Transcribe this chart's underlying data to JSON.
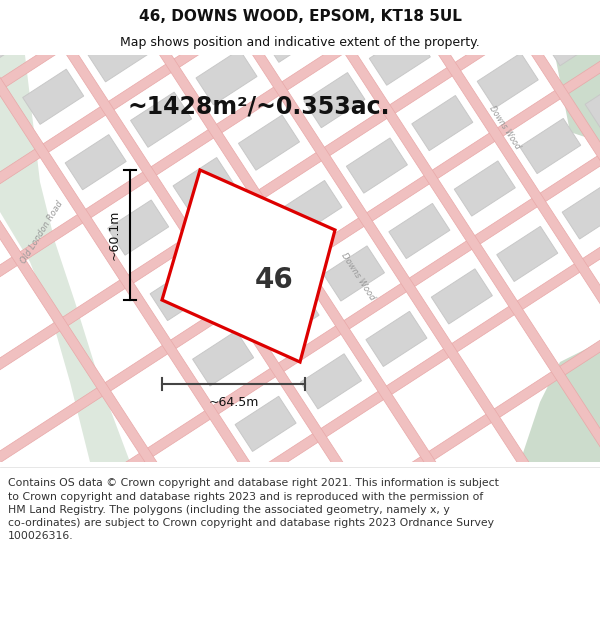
{
  "title": "46, DOWNS WOOD, EPSOM, KT18 5UL",
  "subtitle": "Map shows position and indicative extent of the property.",
  "area_text": "~1428m²/~0.353ac.",
  "label_46": "46",
  "dim_height": "~60.1m",
  "dim_width": "~64.5m",
  "footer": "Contains OS data © Crown copyright and database right 2021. This information is subject\nto Crown copyright and database rights 2023 and is reproduced with the permission of\nHM Land Registry. The polygons (including the associated geometry, namely x, y\nco-ordinates) are subject to Crown copyright and database rights 2023 Ordnance Survey\n100026316.",
  "bg_color": "#f5f5f0",
  "map_bg": "#f5f5f0",
  "plot_color": "#dd0000",
  "road_color": "#f0c0c0",
  "road_edge": "#e8a8a8",
  "block_fill": "#d4d4d4",
  "block_edge": "#c8c8c8",
  "green_left": "#dde8dd",
  "green_right": "#ccdccc",
  "white_bg": "#ffffff",
  "title_fontsize": 11,
  "subtitle_fontsize": 9,
  "area_fontsize": 17,
  "label_fontsize": 20,
  "dim_fontsize": 9,
  "road_label_fontsize": 6,
  "footer_fontsize": 7.8
}
